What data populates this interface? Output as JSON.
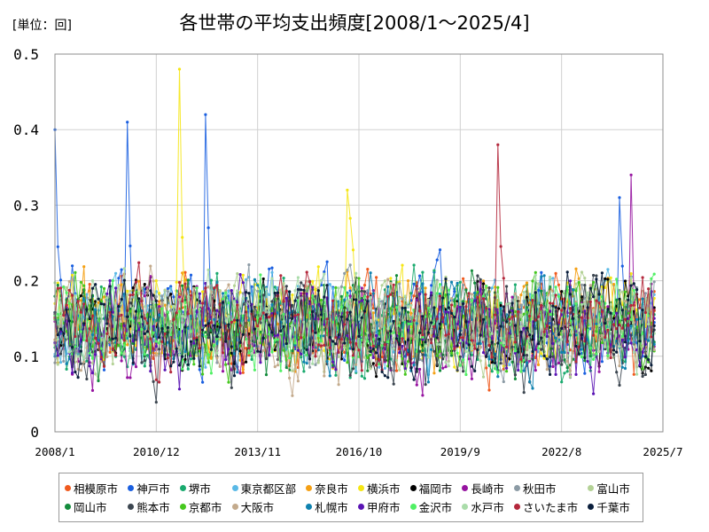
{
  "chart_data": {
    "type": "line",
    "title": "各世帯の平均支出頻度[2008/1～2025/4]",
    "unit_label": "[単位：回]",
    "x_range": [
      "2008/1",
      "2025/7"
    ],
    "x_ticks": [
      "2008/1",
      "2010/12",
      "2013/11",
      "2016/10",
      "2019/9",
      "2022/8",
      "2025/7"
    ],
    "y_range": [
      0,
      0.5
    ],
    "y_ticks": [
      "0",
      "0.1",
      "0.2",
      "0.3",
      "0.4",
      "0.5"
    ],
    "grid": true,
    "legend_position": "bottom",
    "series": [
      {
        "name": "相模原市",
        "color": "#f05a1e",
        "base": 0.14
      },
      {
        "name": "神戸市",
        "color": "#1a5fe0",
        "base": 0.15,
        "peaks": [
          [
            "2008/1",
            0.4
          ],
          [
            "2010/2",
            0.41
          ],
          [
            "2012/5",
            0.42
          ],
          [
            "2024/4",
            0.31
          ]
        ]
      },
      {
        "name": "堺市",
        "color": "#19aa6e",
        "base": 0.14
      },
      {
        "name": "東京都区部",
        "color": "#5ab9e6",
        "base": 0.14
      },
      {
        "name": "奈良市",
        "color": "#f5a014",
        "base": 0.14
      },
      {
        "name": "横浜市",
        "color": "#f5e614",
        "base": 0.15,
        "peaks": [
          [
            "2011/8",
            0.48
          ],
          [
            "2016/6",
            0.32
          ]
        ]
      },
      {
        "name": "福岡市",
        "color": "#000000",
        "base": 0.14
      },
      {
        "name": "長崎市",
        "color": "#9614a0",
        "base": 0.13,
        "peaks": [
          [
            "2024/8",
            0.34
          ]
        ]
      },
      {
        "name": "秋田市",
        "color": "#8c9ba5",
        "base": 0.14
      },
      {
        "name": "富山市",
        "color": "#b4d296",
        "base": 0.14
      },
      {
        "name": "岡山市",
        "color": "#148c3c",
        "base": 0.14
      },
      {
        "name": "熊本市",
        "color": "#3c4650",
        "base": 0.13
      },
      {
        "name": "京都市",
        "color": "#46c81e",
        "base": 0.14
      },
      {
        "name": "大阪市",
        "color": "#c3aa8c",
        "base": 0.14
      },
      {
        "name": "札幌市",
        "color": "#0f82af",
        "base": 0.14
      },
      {
        "name": "甲府市",
        "color": "#5a14b4",
        "base": 0.13
      },
      {
        "name": "金沢市",
        "color": "#50f064",
        "base": 0.14
      },
      {
        "name": "水戸市",
        "color": "#aadcaa",
        "base": 0.14
      },
      {
        "name": "さいたま市",
        "color": "#b4283c",
        "base": 0.14,
        "peaks": [
          [
            "2020/10",
            0.38
          ]
        ]
      },
      {
        "name": "千葉市",
        "color": "#0a1e3c",
        "base": 0.14
      }
    ]
  }
}
